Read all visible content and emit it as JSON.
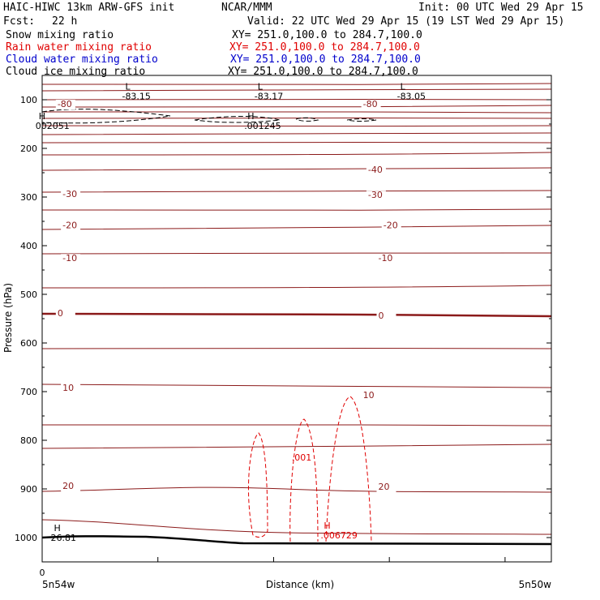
{
  "header": {
    "model": "HAIC-HIWC 13km ARW-GFS init",
    "org": "NCAR/MMM",
    "init": "Init: 00 UTC Wed 29 Apr 15",
    "fcst_label": "Fcst:",
    "fcst_value": "22 h",
    "valid": "Valid: 22 UTC Wed 29 Apr 15 (19 LST Wed 29 Apr 15)"
  },
  "fields": [
    {
      "name": "Snow water mixing ratio",
      "text": "Snow mixing ratio",
      "xy": "XY= 251.0,100.0 to 284.7,100.0",
      "color": "#000000"
    },
    {
      "name": "Rain water mixing ratio",
      "text": "Rain water mixing ratio",
      "xy": "XY= 251.0,100.0 to 284.7,100.0",
      "color": "#e00000"
    },
    {
      "name": "Cloud water mixing ratio",
      "text": "Cloud water mixing ratio",
      "xy": "XY= 251.0,100.0 to 284.7,100.0",
      "color": "#0000cc"
    },
    {
      "name": "Cloud ice mixing ratio",
      "text": "Cloud ice mixing ratio",
      "xy": "XY= 251.0,100.0 to 284.7,100.0",
      "color": "#000000"
    }
  ],
  "chart_data": {
    "type": "cross-section contour",
    "ylabel": "Pressure (hPa)",
    "xlabel": "Distance (km)",
    "yticks": [
      100,
      200,
      300,
      400,
      500,
      600,
      700,
      800,
      900,
      1000
    ],
    "ylim": [
      50,
      1050
    ],
    "x_origin_label": "0",
    "x_left_label": "5n54w",
    "x_right_label": "5n50w",
    "temperature_color": "#8b1a1a",
    "rain_color": "#e00000",
    "temperature_labels": [
      {
        "value": "-80",
        "x": 0.03,
        "p": 115
      },
      {
        "value": "-80",
        "x": 0.63,
        "p": 115
      },
      {
        "value": "-40",
        "x": 0.64,
        "p": 250
      },
      {
        "value": "-30",
        "x": 0.04,
        "p": 300
      },
      {
        "value": "-30",
        "x": 0.64,
        "p": 302
      },
      {
        "value": "-20",
        "x": 0.04,
        "p": 364
      },
      {
        "value": "-20",
        "x": 0.67,
        "p": 364
      },
      {
        "value": "-10",
        "x": 0.04,
        "p": 432
      },
      {
        "value": "-10",
        "x": 0.66,
        "p": 432
      },
      {
        "value": "0",
        "x": 0.03,
        "p": 545
      },
      {
        "value": "0",
        "x": 0.66,
        "p": 550
      },
      {
        "value": "10",
        "x": 0.04,
        "p": 698
      },
      {
        "value": "10",
        "x": 0.63,
        "p": 713
      },
      {
        "value": "20",
        "x": 0.04,
        "p": 900
      },
      {
        "value": "20",
        "x": 0.66,
        "p": 902
      }
    ],
    "extrema_labels": [
      {
        "symbol": "L",
        "value": "-83.15",
        "x": 0.16,
        "p": 79
      },
      {
        "symbol": "L",
        "value": "-83.17",
        "x": 0.42,
        "p": 79
      },
      {
        "symbol": "L",
        "value": "-83.05",
        "x": 0.7,
        "p": 79
      },
      {
        "symbol": "H",
        "value": "26.81",
        "x": 0.02,
        "p": 987
      },
      {
        "symbol": "H",
        "value": "002051",
        "x": -0.01,
        "p": 140
      },
      {
        "symbol": "H",
        "value": ".001245",
        "x": 0.4,
        "p": 140
      },
      {
        "symbol": "H",
        "value": ".006729",
        "x": 0.55,
        "p": 982
      }
    ],
    "rain_contour_label": {
      "value": ".001",
      "x": 0.49,
      "p": 842
    }
  }
}
